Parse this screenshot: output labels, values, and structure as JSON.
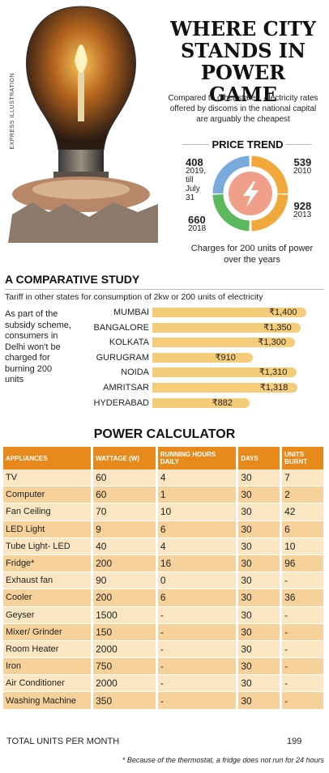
{
  "credit": "EXPRESS ILLUSTRATION",
  "title_lines": [
    "WHERE CITY",
    "STANDS IN",
    "POWER GAME"
  ],
  "subtitle": "Compared to other states, electricity rates offered by discoms in the national capital are arguably the cheapest",
  "price_trend": {
    "title": "PRICE TREND",
    "segments": [
      {
        "value": "408",
        "label_lines": [
          "2019,",
          "till",
          "July",
          "31"
        ],
        "color": "#7aa9dc"
      },
      {
        "value": "539",
        "label_lines": [
          "2010"
        ],
        "color": "#f2a93b"
      },
      {
        "value": "928",
        "label_lines": [
          "2013"
        ],
        "color": "#f2a93b"
      },
      {
        "value": "660",
        "label_lines": [
          "2018"
        ],
        "color": "#5cb85c"
      }
    ],
    "caption": "Charges for 200 units of power over the years"
  },
  "comparative": {
    "title": "A COMPARATIVE STUDY",
    "subtitle": "Tariff in other states for consumption of 2kw or 200 units of electricity",
    "note": "As part of the subsidy scheme, consumers in Delhi won't be charged for burning 200 units"
  },
  "chart_data": {
    "type": "bar",
    "categories": [
      "MUMBAI",
      "BANGALORE",
      "KOLKATA",
      "GURUGRAM",
      "NOIDA",
      "AMRITSAR",
      "HYDERABAD"
    ],
    "values": [
      1400,
      1350,
      1300,
      910,
      1310,
      1318,
      882
    ],
    "value_labels": [
      "₹1,400",
      "₹1,350",
      "₹1,300",
      "₹910",
      "₹1,310",
      "₹1,318",
      "₹882"
    ],
    "title": "A COMPARATIVE STUDY",
    "xlabel": "",
    "ylabel": "",
    "ylim": [
      0,
      1400
    ]
  },
  "calculator": {
    "title": "POWER CALCULATOR",
    "headers": [
      "APPLIANCES",
      "WATTAGE (W)",
      "RUNNING HOURS DAILY",
      "DAYS",
      "UNITS BURNT"
    ],
    "rows": [
      [
        "TV",
        "60",
        "4",
        "30",
        "7"
      ],
      [
        "Computer",
        "60",
        "1",
        "30",
        "2"
      ],
      [
        "Fan Ceiling",
        "70",
        "10",
        "30",
        "42"
      ],
      [
        "LED Light",
        "9",
        "6",
        "30",
        "6"
      ],
      [
        "Tube Light- LED",
        "40",
        "4",
        "30",
        "10"
      ],
      [
        "Fridge*",
        "200",
        "16",
        "30",
        "96"
      ],
      [
        "Exhaust fan",
        "90",
        "0",
        "30",
        "-"
      ],
      [
        "Cooler",
        "200",
        "6",
        "30",
        "36"
      ],
      [
        "Geyser",
        "1500",
        "-",
        "30",
        "-"
      ],
      [
        "Mixer/ Grinder",
        "150",
        "-",
        "30",
        "-"
      ],
      [
        "Room Heater",
        "2000",
        "-",
        "30",
        "-"
      ],
      [
        "Iron",
        "750",
        "-",
        "30",
        "-"
      ],
      [
        "Air Conditioner",
        "2000",
        "-",
        "30",
        "-"
      ],
      [
        "Washing Machine",
        "350",
        "-",
        "30",
        "-"
      ]
    ],
    "total_label": "TOTAL UNITS PER MONTH",
    "total_value": "199",
    "footnote": "* Because of the thermostat, a fridge does not run for 24 hours"
  }
}
